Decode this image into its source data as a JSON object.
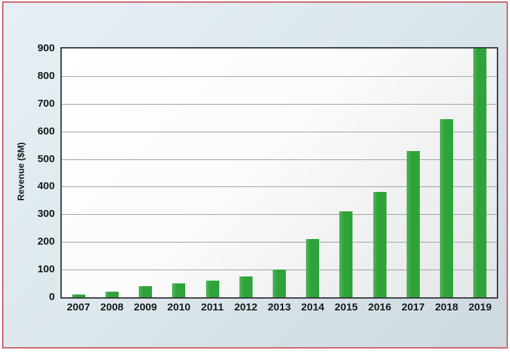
{
  "chart_data": {
    "type": "bar",
    "title": "",
    "xlabel": "",
    "ylabel": "Revenue ($M)",
    "categories": [
      "2007",
      "2008",
      "2009",
      "2010",
      "2011",
      "2012",
      "2013",
      "2014",
      "2015",
      "2016",
      "2017",
      "2018",
      "2019"
    ],
    "values": [
      10,
      20,
      40,
      50,
      60,
      75,
      100,
      210,
      310,
      380,
      530,
      645,
      900
    ],
    "ylim": [
      0,
      900
    ],
    "yticks": [
      0,
      100,
      200,
      300,
      400,
      500,
      600,
      700,
      800,
      900
    ],
    "grid": "horizontal",
    "legend_position": "none",
    "bar_color": "#2ea33a",
    "gridline_color": "#9aa0a4",
    "plot_border_color": "#393d40",
    "panel_background_color": "#dde8ed",
    "panel_border_color": "#c9646c",
    "text_color": "#17191b"
  }
}
